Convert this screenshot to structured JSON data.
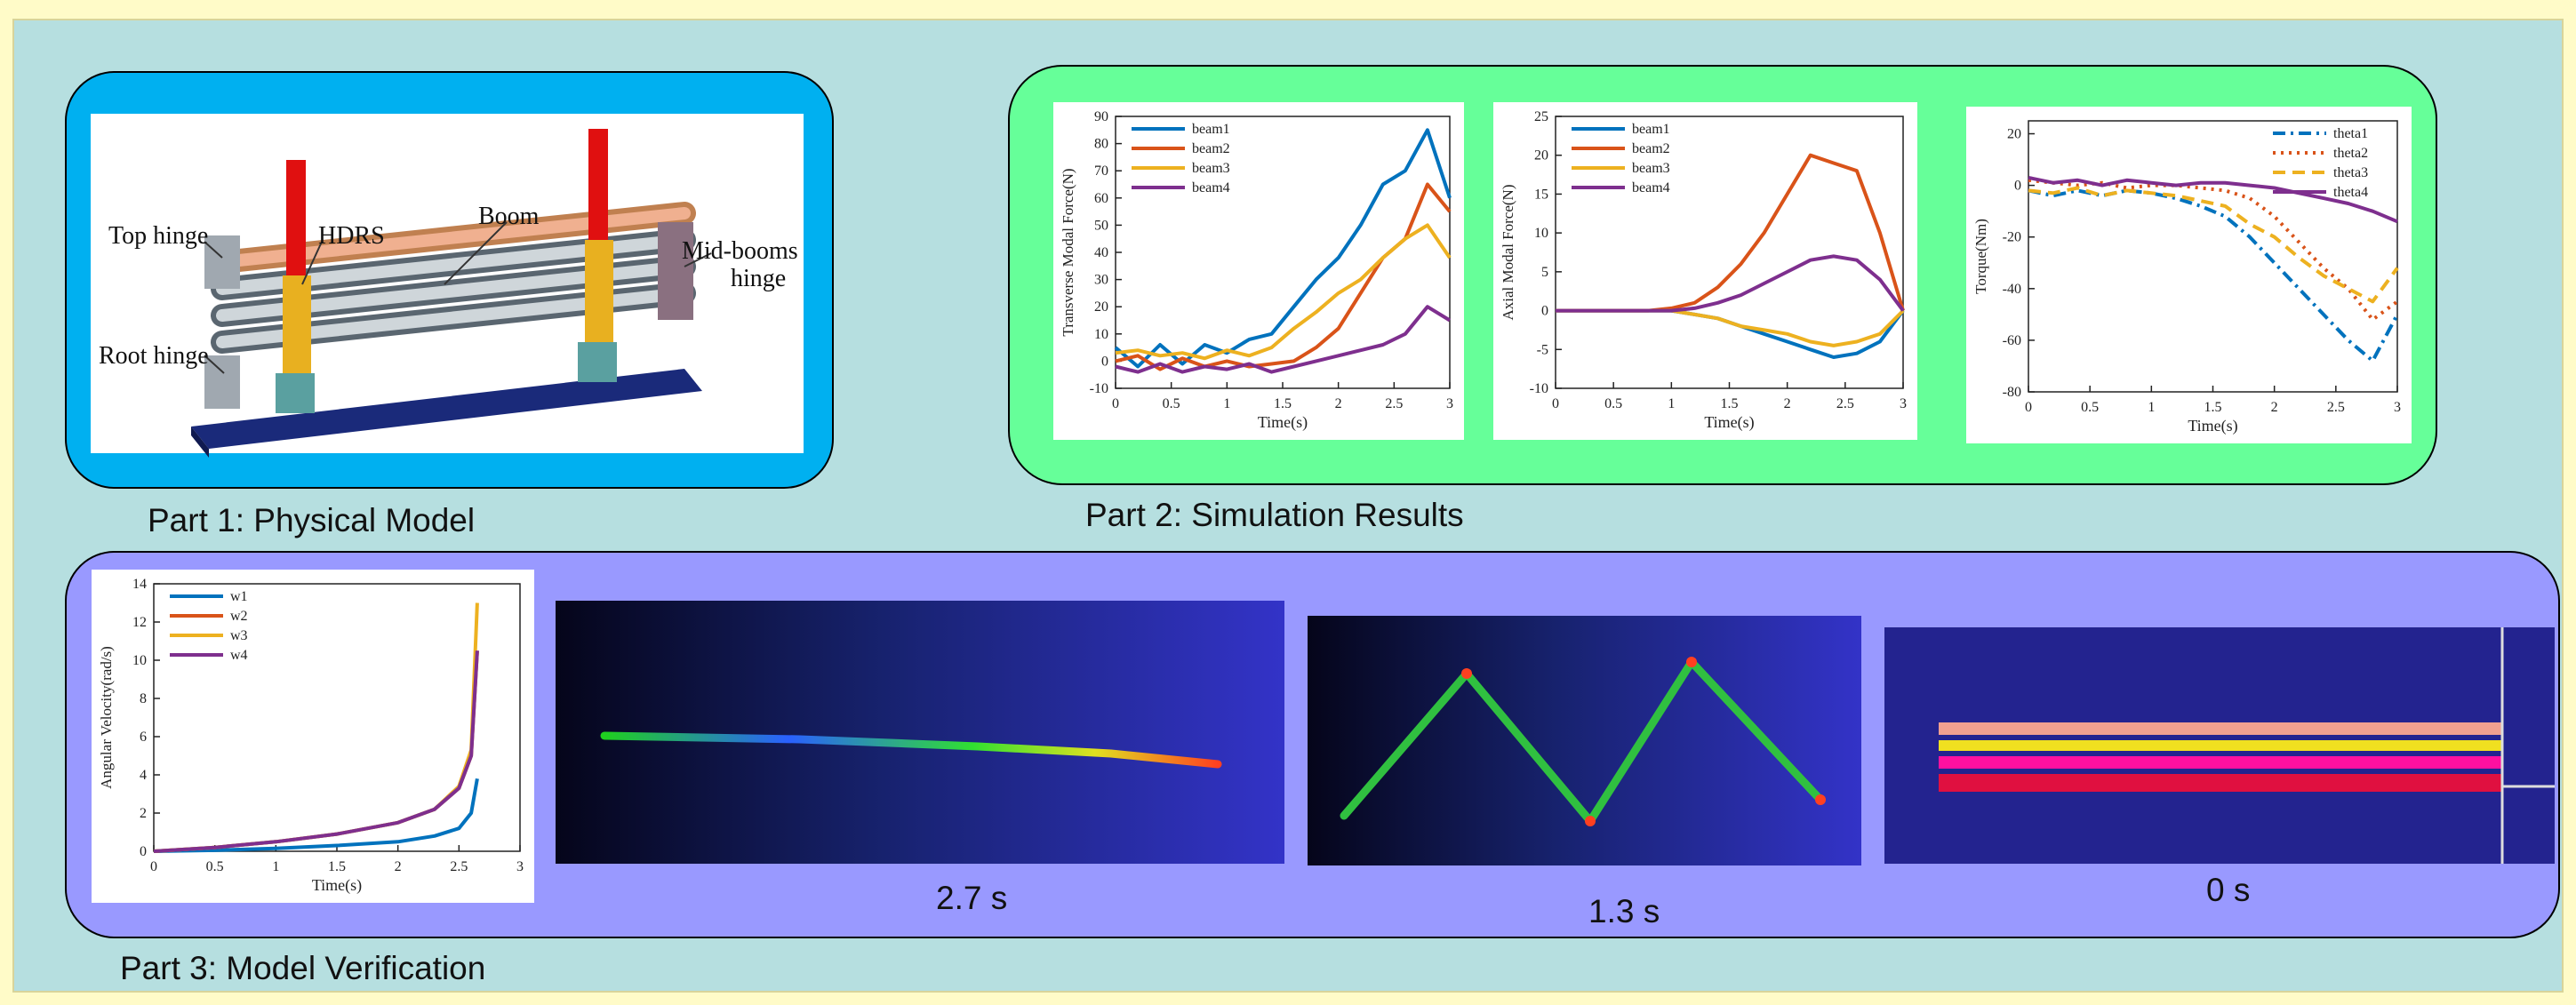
{
  "part1": {
    "caption": "Part 1: Physical Model",
    "labels": {
      "top_hinge": "Top hinge",
      "hdrs": "HDRS",
      "boom": "Boom",
      "mid_booms_hinge": [
        "Mid-booms",
        "hinge"
      ],
      "root_hinge": "Root hinge"
    }
  },
  "part2": {
    "caption": "Part 2: Simulation Results"
  },
  "part3": {
    "caption": "Part 3: Model Verification",
    "snapshots": [
      "2.7 s",
      "1.3 s",
      "0 s"
    ]
  },
  "chart_data": [
    {
      "type": "line",
      "x_label": "Time(s)",
      "y_label": "Transverse Modal Force(N)",
      "x": [
        0,
        0.2,
        0.4,
        0.6,
        0.8,
        1.0,
        1.2,
        1.4,
        1.6,
        1.8,
        2.0,
        2.2,
        2.4,
        2.6,
        2.8,
        3.0
      ],
      "xlim": [
        0,
        3
      ],
      "xticks": [
        0,
        0.5,
        1,
        1.5,
        2,
        2.5,
        3
      ],
      "ylim": [
        -10,
        90
      ],
      "yticks": [
        -10,
        0,
        10,
        20,
        30,
        40,
        50,
        60,
        70,
        80,
        90
      ],
      "legend": "upper left",
      "series": [
        {
          "name": "beam1",
          "color": "#0072bd",
          "style": "solid",
          "values": [
            5,
            -2,
            6,
            -1,
            6,
            3,
            8,
            10,
            20,
            30,
            38,
            50,
            65,
            70,
            85,
            60
          ]
        },
        {
          "name": "beam2",
          "color": "#d95319",
          "style": "solid",
          "values": [
            0,
            2,
            -3,
            1,
            -2,
            0,
            -2,
            -1,
            0,
            5,
            12,
            25,
            38,
            45,
            65,
            55
          ]
        },
        {
          "name": "beam3",
          "color": "#edb120",
          "style": "solid",
          "values": [
            3,
            4,
            2,
            3,
            1,
            4,
            2,
            5,
            12,
            18,
            25,
            30,
            38,
            45,
            50,
            38
          ]
        },
        {
          "name": "beam4",
          "color": "#7e2f8e",
          "style": "solid",
          "values": [
            -2,
            -4,
            -1,
            -4,
            -2,
            -3,
            -1,
            -4,
            -2,
            0,
            2,
            4,
            6,
            10,
            20,
            15
          ]
        }
      ]
    },
    {
      "type": "line",
      "x_label": "Time(s)",
      "y_label": "Axial Modal Force(N)",
      "x": [
        0,
        0.2,
        0.4,
        0.6,
        0.8,
        1.0,
        1.2,
        1.4,
        1.6,
        1.8,
        2.0,
        2.2,
        2.4,
        2.6,
        2.8,
        3.0
      ],
      "xlim": [
        0,
        3
      ],
      "xticks": [
        0,
        0.5,
        1,
        1.5,
        2,
        2.5,
        3
      ],
      "ylim": [
        -10,
        25
      ],
      "yticks": [
        -10,
        -5,
        0,
        5,
        10,
        15,
        20,
        25
      ],
      "legend": "upper left",
      "series": [
        {
          "name": "beam1",
          "color": "#0072bd",
          "style": "solid",
          "values": [
            0,
            0,
            0,
            0,
            0,
            0,
            -0.5,
            -1,
            -2,
            -3,
            -4,
            -5,
            -6,
            -5.5,
            -4,
            0
          ]
        },
        {
          "name": "beam2",
          "color": "#d95319",
          "style": "solid",
          "values": [
            0,
            0,
            0,
            0,
            0,
            0.3,
            1,
            3,
            6,
            10,
            15,
            20,
            19,
            18,
            10,
            0
          ]
        },
        {
          "name": "beam3",
          "color": "#edb120",
          "style": "solid",
          "values": [
            0,
            0,
            0,
            0,
            0,
            0,
            -0.5,
            -1,
            -2,
            -2.5,
            -3,
            -4,
            -4.5,
            -4,
            -3,
            0
          ]
        },
        {
          "name": "beam4",
          "color": "#7e2f8e",
          "style": "solid",
          "values": [
            0,
            0,
            0,
            0,
            0,
            0,
            0.3,
            1,
            2,
            3.5,
            5,
            6.5,
            7,
            6.5,
            4,
            0
          ]
        }
      ]
    },
    {
      "type": "line",
      "x_label": "Time(s)",
      "y_label": "Torque(Nm)",
      "x": [
        0,
        0.2,
        0.4,
        0.6,
        0.8,
        1.0,
        1.2,
        1.4,
        1.6,
        1.8,
        2.0,
        2.2,
        2.4,
        2.6,
        2.8,
        3.0
      ],
      "xlim": [
        0,
        3
      ],
      "xticks": [
        0,
        0.5,
        1,
        1.5,
        2,
        2.5,
        3
      ],
      "ylim": [
        -80,
        25
      ],
      "yticks": [
        -80,
        -60,
        -40,
        -20,
        0,
        20
      ],
      "legend": "upper right",
      "series": [
        {
          "name": "theta1",
          "color": "#0072bd",
          "style": "dashdot",
          "values": [
            -2,
            -4,
            -2,
            -4,
            -2,
            -3,
            -5,
            -8,
            -12,
            -20,
            -30,
            -40,
            -50,
            -60,
            -68,
            -50
          ]
        },
        {
          "name": "theta2",
          "color": "#d95319",
          "style": "dotted",
          "values": [
            2,
            1,
            0,
            1,
            -1,
            0,
            0,
            -1,
            -2,
            -5,
            -12,
            -22,
            -32,
            -40,
            -52,
            -45
          ]
        },
        {
          "name": "theta3",
          "color": "#edb120",
          "style": "dashed",
          "values": [
            -2,
            -3,
            -1,
            -4,
            -2,
            -3,
            -4,
            -6,
            -8,
            -15,
            -20,
            -28,
            -35,
            -40,
            -45,
            -32
          ]
        },
        {
          "name": "theta4",
          "color": "#7e2f8e",
          "style": "solid",
          "values": [
            3,
            1,
            2,
            0,
            2,
            1,
            0,
            1,
            1,
            0,
            -1,
            -3,
            -5,
            -7,
            -10,
            -14
          ]
        }
      ]
    },
    {
      "type": "line",
      "x_label": "Time(s)",
      "y_label": "Angular Velocity(rad/s)",
      "x": [
        0,
        0.5,
        1,
        1.5,
        2,
        2.3,
        2.5,
        2.6,
        2.65
      ],
      "xlim": [
        0,
        3
      ],
      "xticks": [
        0,
        0.5,
        1,
        1.5,
        2,
        2.5,
        3
      ],
      "ylim": [
        0,
        14
      ],
      "yticks": [
        0,
        2,
        4,
        6,
        8,
        10,
        12,
        14
      ],
      "legend": "upper left",
      "series": [
        {
          "name": "w1",
          "color": "#0072bd",
          "style": "solid",
          "values": [
            0,
            0.05,
            0.15,
            0.3,
            0.5,
            0.8,
            1.2,
            2,
            3.8
          ]
        },
        {
          "name": "w2",
          "color": "#d95319",
          "style": "solid",
          "values": [
            0,
            0.2,
            0.5,
            0.9,
            1.5,
            2.2,
            3.3,
            5,
            10.5
          ]
        },
        {
          "name": "w3",
          "color": "#edb120",
          "style": "solid",
          "values": [
            0,
            0.2,
            0.5,
            0.9,
            1.5,
            2.2,
            3.4,
            5.3,
            13
          ]
        },
        {
          "name": "w4",
          "color": "#7e2f8e",
          "style": "solid",
          "values": [
            0,
            0.2,
            0.5,
            0.9,
            1.5,
            2.2,
            3.3,
            5,
            10.5
          ]
        }
      ]
    }
  ]
}
